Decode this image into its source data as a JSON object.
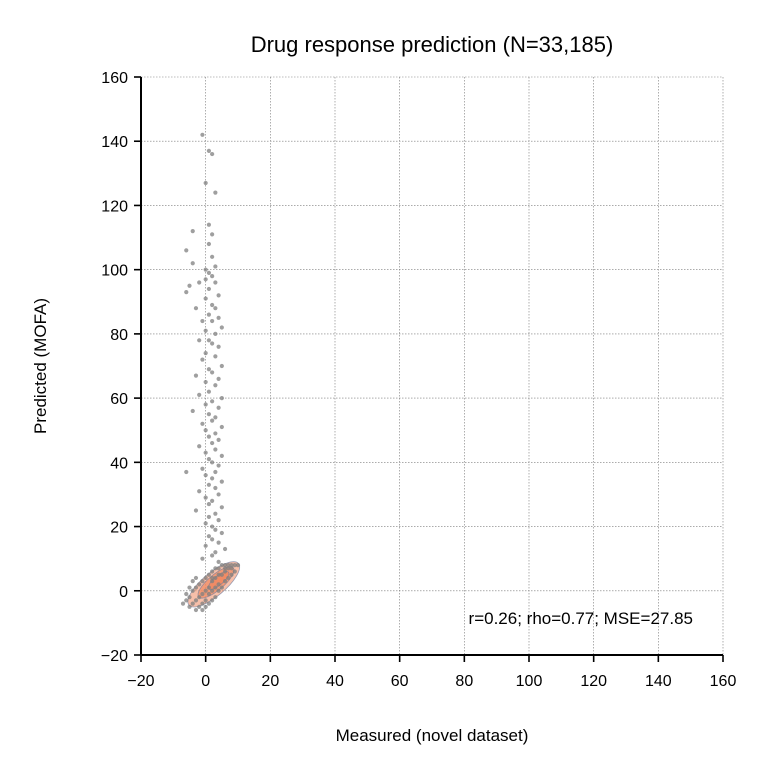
{
  "chart_data": {
    "type": "scatter",
    "title": "Drug response prediction (N=33,185)",
    "xlabel": "Measured (novel dataset)",
    "ylabel": "Predicted (MOFA)",
    "xlim": [
      -20,
      160
    ],
    "ylim": [
      -20,
      160
    ],
    "xticks": [
      -20,
      0,
      20,
      40,
      60,
      80,
      100,
      120,
      140,
      160
    ],
    "yticks": [
      -20,
      0,
      20,
      40,
      60,
      80,
      100,
      120,
      140,
      160
    ],
    "xtick_labels": [
      "−20",
      "0",
      "20",
      "40",
      "60",
      "80",
      "100",
      "120",
      "140",
      "160"
    ],
    "ytick_labels": [
      "−20",
      "0",
      "20",
      "40",
      "60",
      "80",
      "100",
      "120",
      "140",
      "160"
    ],
    "grid": true,
    "annotation": "r=0.26; rho=0.77; MSE=27.85",
    "colors": {
      "points": "#7f7f7f",
      "density": "#f08a63",
      "density_edge": "#6f7da0"
    },
    "series": [
      {
        "values": [
          [
            -1,
            142
          ],
          [
            1,
            137
          ],
          [
            2,
            136
          ],
          [
            0,
            127
          ],
          [
            3,
            124
          ],
          [
            1,
            114
          ],
          [
            2,
            111
          ],
          [
            -4,
            112
          ],
          [
            1,
            108
          ],
          [
            -6,
            106
          ],
          [
            2,
            104
          ],
          [
            -4,
            102
          ],
          [
            3,
            101
          ],
          [
            0,
            100
          ],
          [
            1,
            99
          ],
          [
            2,
            98
          ],
          [
            0,
            97
          ],
          [
            -2,
            96
          ],
          [
            3,
            96
          ],
          [
            -5,
            95
          ],
          [
            -6,
            93
          ],
          [
            1,
            94
          ],
          [
            4,
            92
          ],
          [
            0,
            91
          ],
          [
            2,
            89
          ],
          [
            3,
            88
          ],
          [
            -3,
            88
          ],
          [
            1,
            86
          ],
          [
            4,
            85
          ],
          [
            2,
            84
          ],
          [
            -1,
            84
          ],
          [
            5,
            82
          ],
          [
            0,
            81
          ],
          [
            3,
            80
          ],
          [
            -2,
            78
          ],
          [
            1,
            78
          ],
          [
            2,
            77
          ],
          [
            4,
            76
          ],
          [
            0,
            74
          ],
          [
            3,
            73
          ],
          [
            -1,
            72
          ],
          [
            5,
            70
          ],
          [
            1,
            69
          ],
          [
            2,
            68
          ],
          [
            -3,
            67
          ],
          [
            4,
            66
          ],
          [
            0,
            65
          ],
          [
            3,
            64
          ],
          [
            1,
            62
          ],
          [
            -2,
            61
          ],
          [
            5,
            60
          ],
          [
            2,
            59
          ],
          [
            0,
            58
          ],
          [
            4,
            57
          ],
          [
            -4,
            56
          ],
          [
            1,
            55
          ],
          [
            3,
            54
          ],
          [
            2,
            53
          ],
          [
            -1,
            52
          ],
          [
            5,
            51
          ],
          [
            0,
            50
          ],
          [
            3,
            49
          ],
          [
            1,
            48
          ],
          [
            4,
            47
          ],
          [
            2,
            46
          ],
          [
            -2,
            45
          ],
          [
            3,
            44
          ],
          [
            0,
            43
          ],
          [
            5,
            42
          ],
          [
            1,
            41
          ],
          [
            2,
            40
          ],
          [
            4,
            39
          ],
          [
            -1,
            38
          ],
          [
            3,
            37
          ],
          [
            -6,
            37
          ],
          [
            0,
            36
          ],
          [
            2,
            35
          ],
          [
            5,
            34
          ],
          [
            1,
            33
          ],
          [
            3,
            32
          ],
          [
            -2,
            31
          ],
          [
            4,
            30
          ],
          [
            0,
            29
          ],
          [
            2,
            28
          ],
          [
            1,
            27
          ],
          [
            5,
            26
          ],
          [
            -3,
            25
          ],
          [
            3,
            24
          ],
          [
            1,
            23
          ],
          [
            4,
            22
          ],
          [
            0,
            21
          ],
          [
            2,
            20
          ],
          [
            3,
            19
          ],
          [
            5,
            18
          ],
          [
            1,
            17
          ],
          [
            2,
            16
          ],
          [
            4,
            15
          ],
          [
            0,
            14
          ],
          [
            6,
            13
          ],
          [
            3,
            12
          ],
          [
            2,
            11
          ],
          [
            -1,
            10
          ],
          [
            4,
            9
          ],
          [
            7,
            8
          ],
          [
            8,
            7
          ],
          [
            9,
            8
          ],
          [
            6,
            6
          ],
          [
            5,
            5
          ],
          [
            3,
            4
          ],
          [
            7,
            4
          ],
          [
            8,
            5
          ],
          [
            2,
            3
          ],
          [
            4,
            2
          ],
          [
            6,
            3
          ],
          [
            1,
            1
          ],
          [
            3,
            1
          ],
          [
            5,
            1
          ],
          [
            0,
            0
          ],
          [
            2,
            0
          ],
          [
            4,
            0
          ],
          [
            -1,
            -1
          ],
          [
            1,
            -1
          ],
          [
            3,
            -2
          ],
          [
            -2,
            -2
          ],
          [
            0,
            -3
          ],
          [
            2,
            -3
          ],
          [
            -3,
            -3
          ],
          [
            -1,
            -4
          ],
          [
            1,
            -4
          ],
          [
            -4,
            -4
          ],
          [
            -2,
            -5
          ],
          [
            0,
            -5
          ],
          [
            -5,
            -5
          ],
          [
            -3,
            -6
          ],
          [
            -1,
            -6
          ],
          [
            -6,
            -3
          ],
          [
            -5,
            -2
          ],
          [
            -4,
            0
          ],
          [
            -3,
            1
          ],
          [
            -2,
            2
          ],
          [
            -1,
            3
          ],
          [
            0,
            4
          ],
          [
            1,
            5
          ],
          [
            2,
            6
          ],
          [
            3,
            7
          ],
          [
            4,
            7
          ],
          [
            5,
            8
          ],
          [
            6,
            8
          ],
          [
            7,
            7
          ],
          [
            9,
            6
          ],
          [
            -4,
            3
          ],
          [
            -3,
            4
          ],
          [
            -5,
            1
          ],
          [
            -6,
            -1
          ],
          [
            -7,
            -4
          ],
          [
            10,
            8
          ],
          [
            8,
            8
          ],
          [
            6,
            7
          ],
          [
            4,
            5
          ],
          [
            2,
            4
          ]
        ]
      }
    ]
  }
}
